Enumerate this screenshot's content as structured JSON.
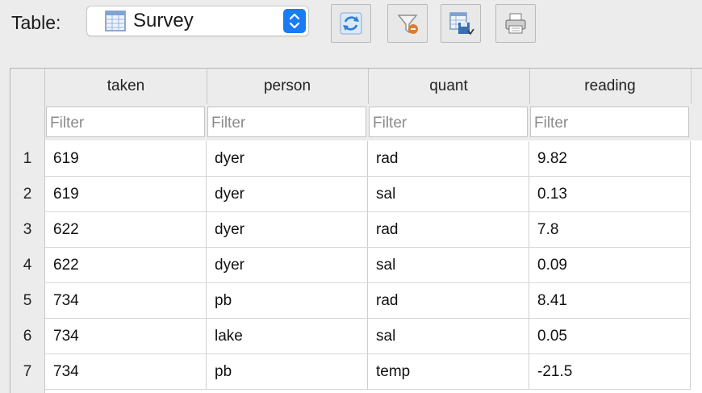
{
  "toolbar": {
    "table_label": "Table:",
    "selected_table": "Survey",
    "buttons": [
      {
        "icon": "refresh-icon",
        "color": "#2e7fd6"
      },
      {
        "icon": "clear-filters-icon",
        "color": "#e07a2a"
      },
      {
        "icon": "save-table-icon",
        "color": "#3a6fb0"
      },
      {
        "icon": "print-icon",
        "color": "#555555"
      }
    ],
    "accent": "#1a7cf4"
  },
  "grid": {
    "columns": [
      "taken",
      "person",
      "quant",
      "reading"
    ],
    "filter_placeholder": "Filter",
    "rows": [
      {
        "num": "1",
        "cells": [
          "619",
          "dyer",
          "rad",
          "9.82"
        ]
      },
      {
        "num": "2",
        "cells": [
          "619",
          "dyer",
          "sal",
          "0.13"
        ]
      },
      {
        "num": "3",
        "cells": [
          "622",
          "dyer",
          "rad",
          "7.8"
        ]
      },
      {
        "num": "4",
        "cells": [
          "622",
          "dyer",
          "sal",
          "0.09"
        ]
      },
      {
        "num": "5",
        "cells": [
          "734",
          "pb",
          "rad",
          "8.41"
        ]
      },
      {
        "num": "6",
        "cells": [
          "734",
          "lake",
          "sal",
          "0.05"
        ]
      },
      {
        "num": "7",
        "cells": [
          "734",
          "pb",
          "temp",
          "-21.5"
        ]
      }
    ]
  }
}
